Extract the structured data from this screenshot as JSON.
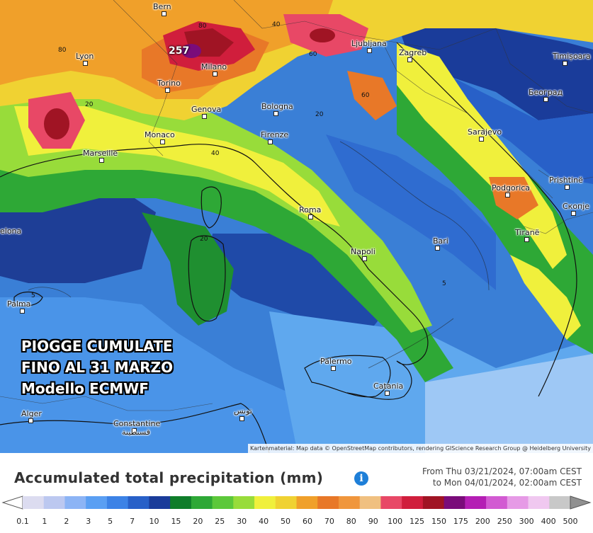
{
  "map": {
    "cities": [
      {
        "name": "Bern"
      },
      {
        "name": "Lyon"
      },
      {
        "name": "Torino"
      },
      {
        "name": "Milano"
      },
      {
        "name": "Genova"
      },
      {
        "name": "Bologna"
      },
      {
        "name": "Monaco"
      },
      {
        "name": "Firenze"
      },
      {
        "name": "Marseille"
      },
      {
        "name": "Ljubljana"
      },
      {
        "name": "Zagreb"
      },
      {
        "name": "Timișoara"
      },
      {
        "name": "Београд"
      },
      {
        "name": "Sarajevo"
      },
      {
        "name": "Podgorica"
      },
      {
        "name": "Prishtinë"
      },
      {
        "name": "Скопје"
      },
      {
        "name": "Tiranë"
      },
      {
        "name": "Roma"
      },
      {
        "name": "Napoli"
      },
      {
        "name": "Bari"
      },
      {
        "name": "Palermo"
      },
      {
        "name": "Catania"
      },
      {
        "name": "Palma"
      },
      {
        "name": "Alger"
      },
      {
        "name": "Constantine"
      },
      {
        "name": "قسنطينة"
      },
      {
        "name": "تونس"
      },
      {
        "name": "elona"
      }
    ],
    "contour_labels": [
      "80",
      "80",
      "60",
      "40",
      "40",
      "20",
      "20",
      "20",
      "5",
      "5",
      "60"
    ],
    "max_value": "257",
    "attribution": "Kartenmaterial: Map data © OpenStreetMap contributors, rendering GIScience Research Group @ Heidelberg University"
  },
  "overlay": {
    "line1": "PIOGGE CUMULATE",
    "line2": "FINO AL 31 MARZO",
    "line3": "Modello ECMWF"
  },
  "legend": {
    "title": "Accumulated total precipitation (mm)",
    "info_icon": "info-icon",
    "range_from": "From Thu 03/21/2024, 07:00am CEST",
    "range_to": "to Mon 04/01/2024, 02:00am CEST",
    "ticks": [
      "0.1",
      "1",
      "2",
      "3",
      "5",
      "7",
      "10",
      "15",
      "20",
      "25",
      "30",
      "40",
      "50",
      "60",
      "70",
      "80",
      "90",
      "100",
      "125",
      "150",
      "175",
      "200",
      "250",
      "300",
      "400",
      "500"
    ],
    "colors": [
      "#dcdcf0",
      "#bcc8f0",
      "#8cb4f5",
      "#5a9ff3",
      "#3c82e6",
      "#2860c8",
      "#1a3c9a",
      "#0f7d2a",
      "#2ea836",
      "#5cc83a",
      "#98dc3a",
      "#f0f03c",
      "#f0d232",
      "#f0a02a",
      "#e87828",
      "#f0963c",
      "#f0c080",
      "#e84866",
      "#d01e3c",
      "#a01424",
      "#7a0c7a",
      "#b41eb4",
      "#d25ad2",
      "#e69ae6",
      "#f0c8f0",
      "#c8c8c8"
    ]
  }
}
